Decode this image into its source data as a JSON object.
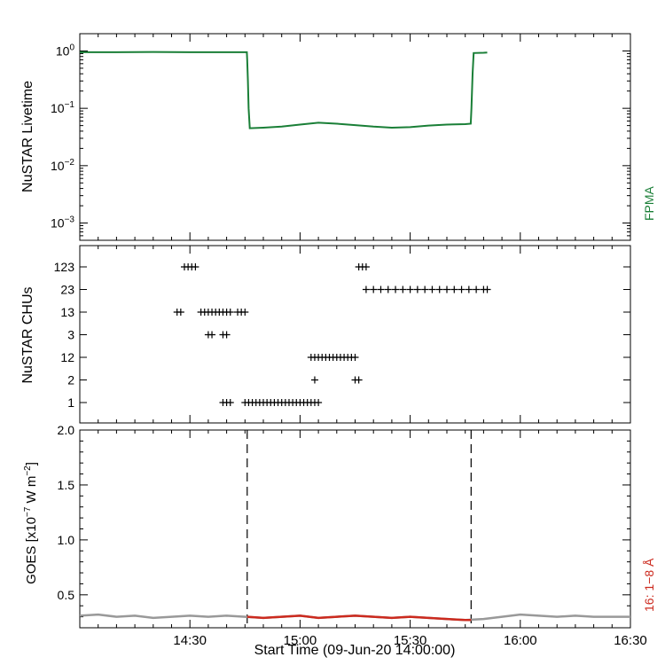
{
  "chart_data": [
    {
      "panel": "livetime",
      "type": "line",
      "ylabel": "NuSTAR Livetime",
      "yscale": "log",
      "ylim": [
        0.0005,
        2
      ],
      "xlim_minutes": [
        0,
        150
      ],
      "y_ticks": [
        {
          "value": 1,
          "base": "10",
          "exp": "0"
        },
        {
          "value": 0.1,
          "base": "10",
          "exp": "−1"
        },
        {
          "value": 0.01,
          "base": "10",
          "exp": "−2"
        },
        {
          "value": 0.001,
          "base": "10",
          "exp": "−3"
        }
      ],
      "series": [
        {
          "name": "FPMA",
          "color": "#1a7f37",
          "points": [
            [
              0,
              0.95
            ],
            [
              10,
              0.95
            ],
            [
              20,
              0.96
            ],
            [
              30,
              0.95
            ],
            [
              40,
              0.95
            ],
            [
              45.5,
              0.95
            ],
            [
              45.6,
              0.7
            ],
            [
              45.8,
              0.3
            ],
            [
              46,
              0.1
            ],
            [
              46.3,
              0.045
            ],
            [
              50,
              0.046
            ],
            [
              55,
              0.048
            ],
            [
              60,
              0.052
            ],
            [
              65,
              0.056
            ],
            [
              70,
              0.054
            ],
            [
              75,
              0.051
            ],
            [
              80,
              0.048
            ],
            [
              85,
              0.046
            ],
            [
              90,
              0.047
            ],
            [
              95,
              0.05
            ],
            [
              100,
              0.052
            ],
            [
              105,
              0.053
            ],
            [
              106.5,
              0.054
            ],
            [
              106.7,
              0.1
            ],
            [
              107,
              0.4
            ],
            [
              107.3,
              0.92
            ],
            [
              110,
              0.93
            ],
            [
              111,
              0.94
            ]
          ]
        }
      ],
      "legend": [
        {
          "label": "FPMA",
          "color": "#1a7f37"
        }
      ]
    },
    {
      "panel": "chus",
      "type": "scatter",
      "ylabel": "NuSTAR CHUs",
      "categories": [
        "1",
        "2",
        "12",
        "3",
        "13",
        "23",
        "123"
      ],
      "xlim_minutes": [
        0,
        150
      ],
      "series": [
        {
          "marker": "+",
          "color": "#000000",
          "points": [
            [
              28.5,
              "123"
            ],
            [
              29.5,
              "123"
            ],
            [
              30.5,
              "123"
            ],
            [
              31.5,
              "123"
            ],
            [
              26.5,
              "13"
            ],
            [
              27.5,
              "13"
            ],
            [
              33,
              "13"
            ],
            [
              34,
              "13"
            ],
            [
              35,
              "13"
            ],
            [
              36,
              "13"
            ],
            [
              37,
              "13"
            ],
            [
              38,
              "13"
            ],
            [
              39,
              "13"
            ],
            [
              40,
              "13"
            ],
            [
              41,
              "13"
            ],
            [
              43,
              "13"
            ],
            [
              44,
              "13"
            ],
            [
              45,
              "13"
            ],
            [
              35,
              "3"
            ],
            [
              36,
              "3"
            ],
            [
              39,
              "3"
            ],
            [
              40,
              "3"
            ],
            [
              39,
              "1"
            ],
            [
              40,
              "1"
            ],
            [
              41,
              "1"
            ],
            [
              45,
              "1"
            ],
            [
              46,
              "1"
            ],
            [
              47,
              "1"
            ],
            [
              48,
              "1"
            ],
            [
              49,
              "1"
            ],
            [
              50,
              "1"
            ],
            [
              51,
              "1"
            ],
            [
              52,
              "1"
            ],
            [
              53,
              "1"
            ],
            [
              54,
              "1"
            ],
            [
              55,
              "1"
            ],
            [
              56,
              "1"
            ],
            [
              57,
              "1"
            ],
            [
              58,
              "1"
            ],
            [
              59,
              "1"
            ],
            [
              60,
              "1"
            ],
            [
              61,
              "1"
            ],
            [
              62,
              "1"
            ],
            [
              63,
              "1"
            ],
            [
              64,
              "1"
            ],
            [
              65,
              "1"
            ],
            [
              63,
              "12"
            ],
            [
              64,
              "12"
            ],
            [
              65,
              "12"
            ],
            [
              66,
              "12"
            ],
            [
              67,
              "12"
            ],
            [
              68,
              "12"
            ],
            [
              69,
              "12"
            ],
            [
              70,
              "12"
            ],
            [
              71,
              "12"
            ],
            [
              72,
              "12"
            ],
            [
              73,
              "12"
            ],
            [
              74,
              "12"
            ],
            [
              75,
              "12"
            ],
            [
              64,
              "2"
            ],
            [
              75,
              "2"
            ],
            [
              76,
              "2"
            ],
            [
              76,
              "123"
            ],
            [
              77,
              "123"
            ],
            [
              78,
              "123"
            ],
            [
              78,
              "23"
            ],
            [
              80,
              "23"
            ],
            [
              82,
              "23"
            ],
            [
              84,
              "23"
            ],
            [
              86,
              "23"
            ],
            [
              88,
              "23"
            ],
            [
              90,
              "23"
            ],
            [
              92,
              "23"
            ],
            [
              94,
              "23"
            ],
            [
              96,
              "23"
            ],
            [
              98,
              "23"
            ],
            [
              100,
              "23"
            ],
            [
              102,
              "23"
            ],
            [
              104,
              "23"
            ],
            [
              106,
              "23"
            ],
            [
              108,
              "23"
            ],
            [
              110,
              "23"
            ],
            [
              111,
              "23"
            ]
          ]
        }
      ]
    },
    {
      "panel": "goes",
      "type": "line",
      "ylabel": {
        "prefix": "GOES [x10",
        "exp1": "−7",
        "middle": " W m",
        "exp2": "−2",
        "suffix": "]"
      },
      "ylim": [
        0.2,
        2.0
      ],
      "y_ticks": [
        "0.5",
        "1.0",
        "1.5",
        "2.0"
      ],
      "xlim_minutes": [
        0,
        150
      ],
      "xlabel": "Start Time (09-Jun-20 14:00:00)",
      "x_ticks": [
        {
          "minutes": 30,
          "label": "14:30"
        },
        {
          "minutes": 60,
          "label": "15:00"
        },
        {
          "minutes": 90,
          "label": "15:30"
        },
        {
          "minutes": 120,
          "label": "16:00"
        },
        {
          "minutes": 150,
          "label": "16:30"
        }
      ],
      "vlines_minutes": [
        45.6,
        106.6
      ],
      "series": [
        {
          "name": "full",
          "color": "#999999",
          "points": [
            [
              0,
              0.31
            ],
            [
              5,
              0.32
            ],
            [
              10,
              0.3
            ],
            [
              15,
              0.31
            ],
            [
              20,
              0.29
            ],
            [
              25,
              0.3
            ],
            [
              30,
              0.31
            ],
            [
              35,
              0.3
            ],
            [
              40,
              0.31
            ],
            [
              45,
              0.3
            ],
            [
              50,
              0.29
            ],
            [
              55,
              0.3
            ],
            [
              60,
              0.31
            ],
            [
              65,
              0.29
            ],
            [
              70,
              0.3
            ],
            [
              75,
              0.31
            ],
            [
              80,
              0.3
            ],
            [
              85,
              0.29
            ],
            [
              90,
              0.3
            ],
            [
              95,
              0.29
            ],
            [
              100,
              0.28
            ],
            [
              105,
              0.27
            ],
            [
              110,
              0.28
            ],
            [
              115,
              0.3
            ],
            [
              120,
              0.32
            ],
            [
              125,
              0.31
            ],
            [
              130,
              0.3
            ],
            [
              135,
              0.31
            ],
            [
              140,
              0.3
            ],
            [
              145,
              0.3
            ],
            [
              150,
              0.3
            ]
          ]
        },
        {
          "name": "16: 1−8 Å",
          "color": "#cc2a1e",
          "points": [
            [
              45.6,
              0.3
            ],
            [
              50,
              0.29
            ],
            [
              55,
              0.3
            ],
            [
              60,
              0.31
            ],
            [
              65,
              0.29
            ],
            [
              70,
              0.3
            ],
            [
              75,
              0.31
            ],
            [
              80,
              0.3
            ],
            [
              85,
              0.29
            ],
            [
              90,
              0.3
            ],
            [
              95,
              0.29
            ],
            [
              100,
              0.28
            ],
            [
              105,
              0.27
            ],
            [
              106.6,
              0.27
            ]
          ]
        }
      ],
      "legend": [
        {
          "label": "16: 1−8 Å",
          "color": "#cc2a1e"
        }
      ]
    }
  ]
}
